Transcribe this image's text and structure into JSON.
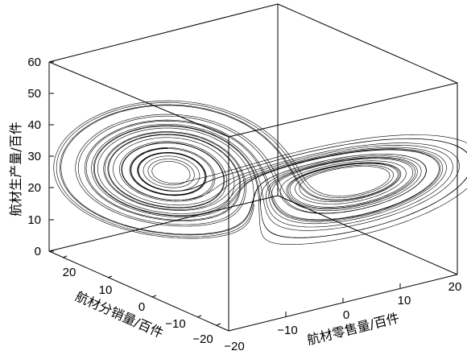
{
  "chart_data": {
    "type": "line",
    "subtype": "3d-trajectory",
    "title": "",
    "xlabel": "航材零售量/百件",
    "ylabel": "航材分销量/百件",
    "zlabel": "航材生产量/百件",
    "xlim": [
      -20,
      20
    ],
    "ylim": [
      -20,
      20
    ],
    "zlim": [
      0,
      60
    ],
    "xticks": [
      "−20",
      "−10",
      "0",
      "10",
      "20"
    ],
    "yticks": [
      "20",
      "10",
      "0",
      "−10",
      "−20"
    ],
    "zticks": [
      "0",
      "10",
      "20",
      "30",
      "40",
      "50",
      "60"
    ],
    "grid": false,
    "series": [
      {
        "system": "lorenz",
        "sigma": 10,
        "rho": 28,
        "beta": 2.667,
        "initial_point": [
          -1,
          0,
          18
        ],
        "x_range": [
          -17,
          19
        ],
        "y_range": [
          -23,
          27
        ],
        "z_range": [
          5,
          47
        ],
        "line_color": "#000000"
      }
    ]
  }
}
